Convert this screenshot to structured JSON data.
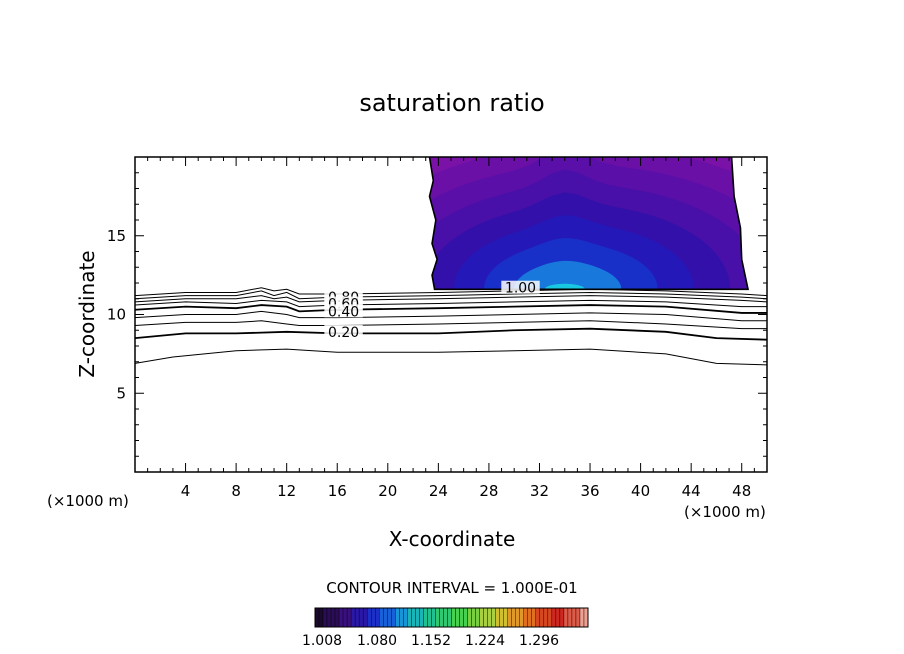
{
  "chart_data": {
    "type": "contour",
    "title": "saturation ratio",
    "xlabel": "X-coordinate",
    "ylabel": "Z-coordinate",
    "x_unit": "(×1000 m)",
    "z_unit": "(×1000 m)",
    "xlim": [
      0,
      50
    ],
    "ylim": [
      0,
      20
    ],
    "x_ticks": [
      4,
      8,
      12,
      16,
      20,
      24,
      28,
      32,
      36,
      40,
      44,
      48
    ],
    "y_ticks": [
      5,
      10,
      15
    ],
    "contour_interval_text": "CONTOUR INTERVAL = 1.000E-01",
    "contour_labels": [
      {
        "text": "0.80",
        "x": 16.5,
        "z": 11.1
      },
      {
        "text": "0.60",
        "x": 16.5,
        "z": 10.7
      },
      {
        "text": "0.40",
        "x": 16.5,
        "z": 10.2
      },
      {
        "text": "0.20",
        "x": 16.5,
        "z": 8.9
      },
      {
        "text": "1.00",
        "x": 30.5,
        "z": 11.7
      }
    ],
    "contours": [
      {
        "level": 0.9,
        "heavy": false,
        "points": [
          [
            0,
            11.2
          ],
          [
            4,
            11.4
          ],
          [
            8,
            11.4
          ],
          [
            10,
            11.7
          ],
          [
            11,
            11.5
          ],
          [
            12,
            11.6
          ],
          [
            13,
            11.3
          ],
          [
            16,
            11.3
          ],
          [
            24,
            11.4
          ],
          [
            30,
            11.5
          ],
          [
            36,
            11.6
          ],
          [
            42,
            11.5
          ],
          [
            48,
            11.3
          ],
          [
            50,
            11.2
          ]
        ]
      },
      {
        "level": 0.8,
        "heavy": false,
        "points": [
          [
            0,
            11.0
          ],
          [
            4,
            11.2
          ],
          [
            8,
            11.2
          ],
          [
            10,
            11.5
          ],
          [
            11,
            11.2
          ],
          [
            12,
            11.4
          ],
          [
            13,
            11.0
          ],
          [
            16,
            11.1
          ],
          [
            24,
            11.2
          ],
          [
            30,
            11.3
          ],
          [
            36,
            11.4
          ],
          [
            42,
            11.3
          ],
          [
            48,
            11.1
          ],
          [
            50,
            11.0
          ]
        ]
      },
      {
        "level": 0.7,
        "heavy": false,
        "points": [
          [
            0,
            10.8
          ],
          [
            4,
            11.0
          ],
          [
            8,
            11.0
          ],
          [
            10,
            11.2
          ],
          [
            11,
            11.0
          ],
          [
            12,
            11.1
          ],
          [
            13,
            10.8
          ],
          [
            16,
            10.9
          ],
          [
            24,
            11.0
          ],
          [
            30,
            11.1
          ],
          [
            36,
            11.2
          ],
          [
            42,
            11.1
          ],
          [
            48,
            10.9
          ],
          [
            50,
            10.8
          ]
        ]
      },
      {
        "level": 0.6,
        "heavy": false,
        "points": [
          [
            0,
            10.6
          ],
          [
            4,
            10.8
          ],
          [
            8,
            10.7
          ],
          [
            10,
            10.9
          ],
          [
            12,
            10.8
          ],
          [
            13,
            10.5
          ],
          [
            16,
            10.6
          ],
          [
            24,
            10.7
          ],
          [
            30,
            10.8
          ],
          [
            36,
            10.9
          ],
          [
            42,
            10.8
          ],
          [
            48,
            10.5
          ],
          [
            50,
            10.5
          ]
        ]
      },
      {
        "level": 0.5,
        "heavy": true,
        "points": [
          [
            0,
            10.3
          ],
          [
            4,
            10.5
          ],
          [
            8,
            10.4
          ],
          [
            10,
            10.6
          ],
          [
            12,
            10.5
          ],
          [
            13,
            10.2
          ],
          [
            16,
            10.3
          ],
          [
            24,
            10.4
          ],
          [
            30,
            10.5
          ],
          [
            36,
            10.6
          ],
          [
            42,
            10.5
          ],
          [
            48,
            10.1
          ],
          [
            50,
            10.1
          ]
        ]
      },
      {
        "level": 0.4,
        "heavy": false,
        "points": [
          [
            0,
            9.8
          ],
          [
            4,
            10.0
          ],
          [
            8,
            10.0
          ],
          [
            10,
            10.2
          ],
          [
            12,
            10.0
          ],
          [
            13,
            9.8
          ],
          [
            16,
            9.8
          ],
          [
            24,
            9.9
          ],
          [
            30,
            10.0
          ],
          [
            36,
            10.1
          ],
          [
            42,
            10.0
          ],
          [
            48,
            9.6
          ],
          [
            50,
            9.6
          ]
        ]
      },
      {
        "level": 0.3,
        "heavy": false,
        "points": [
          [
            0,
            9.3
          ],
          [
            4,
            9.5
          ],
          [
            8,
            9.5
          ],
          [
            10,
            9.6
          ],
          [
            12,
            9.4
          ],
          [
            13,
            9.3
          ],
          [
            16,
            9.3
          ],
          [
            24,
            9.4
          ],
          [
            30,
            9.5
          ],
          [
            36,
            9.6
          ],
          [
            42,
            9.4
          ],
          [
            48,
            9.1
          ],
          [
            50,
            9.1
          ]
        ]
      },
      {
        "level": 0.2,
        "heavy": true,
        "points": [
          [
            0,
            8.5
          ],
          [
            4,
            8.8
          ],
          [
            8,
            8.8
          ],
          [
            12,
            8.9
          ],
          [
            16,
            8.8
          ],
          [
            24,
            8.8
          ],
          [
            30,
            9.0
          ],
          [
            36,
            9.1
          ],
          [
            42,
            8.9
          ],
          [
            46,
            8.5
          ],
          [
            50,
            8.4
          ]
        ]
      },
      {
        "level": 0.1,
        "heavy": false,
        "points": [
          [
            0,
            6.9
          ],
          [
            3,
            7.3
          ],
          [
            8,
            7.7
          ],
          [
            12,
            7.8
          ],
          [
            16,
            7.6
          ],
          [
            24,
            7.6
          ],
          [
            30,
            7.7
          ],
          [
            36,
            7.8
          ],
          [
            42,
            7.5
          ],
          [
            46,
            6.9
          ],
          [
            50,
            6.8
          ]
        ]
      }
    ],
    "supersaturated_region": {
      "x_range": [
        23.3,
        48.5
      ],
      "z_range": [
        11.6,
        20
      ],
      "color_min": 1.008,
      "color_max": 1.296,
      "left_edge": [
        [
          23.3,
          20
        ],
        [
          23.6,
          18.5
        ],
        [
          23.3,
          17.5
        ],
        [
          23.8,
          16.0
        ],
        [
          23.5,
          14.5
        ],
        [
          23.9,
          13.5
        ],
        [
          23.5,
          12.5
        ],
        [
          23.7,
          11.6
        ]
      ],
      "right_edge": [
        [
          47.2,
          20
        ],
        [
          47.4,
          17.5
        ],
        [
          47.9,
          15.5
        ],
        [
          48.0,
          13.5
        ],
        [
          48.5,
          11.6
        ]
      ],
      "fills": [
        {
          "level": 1.0,
          "color": "#7a12a8"
        },
        {
          "level": 1.01,
          "color": "#6a10a6"
        },
        {
          "level": 1.02,
          "color": "#5a0fa8"
        },
        {
          "level": 1.035,
          "color": "#4810a8"
        },
        {
          "level": 1.05,
          "color": "#3410aa"
        },
        {
          "level": 1.065,
          "color": "#2418b8"
        },
        {
          "level": 1.08,
          "color": "#1830c8"
        },
        {
          "level": 1.11,
          "color": "#1878dc"
        },
        {
          "level": 1.15,
          "color": "#18c8e0"
        }
      ]
    },
    "colorbar": {
      "ticks": [
        "1.008",
        "1.080",
        "1.152",
        "1.224",
        "1.296"
      ],
      "colors": [
        "#1a0a2e",
        "#2a0d55",
        "#3a1080",
        "#2a18a8",
        "#1c30c8",
        "#1860d8",
        "#1894d8",
        "#18b4b8",
        "#20c090",
        "#30c870",
        "#48d050",
        "#78d040",
        "#a8d040",
        "#d0c030",
        "#e09828",
        "#e07020",
        "#d84820",
        "#d02820",
        "#e05a48",
        "#f0a090"
      ]
    }
  }
}
